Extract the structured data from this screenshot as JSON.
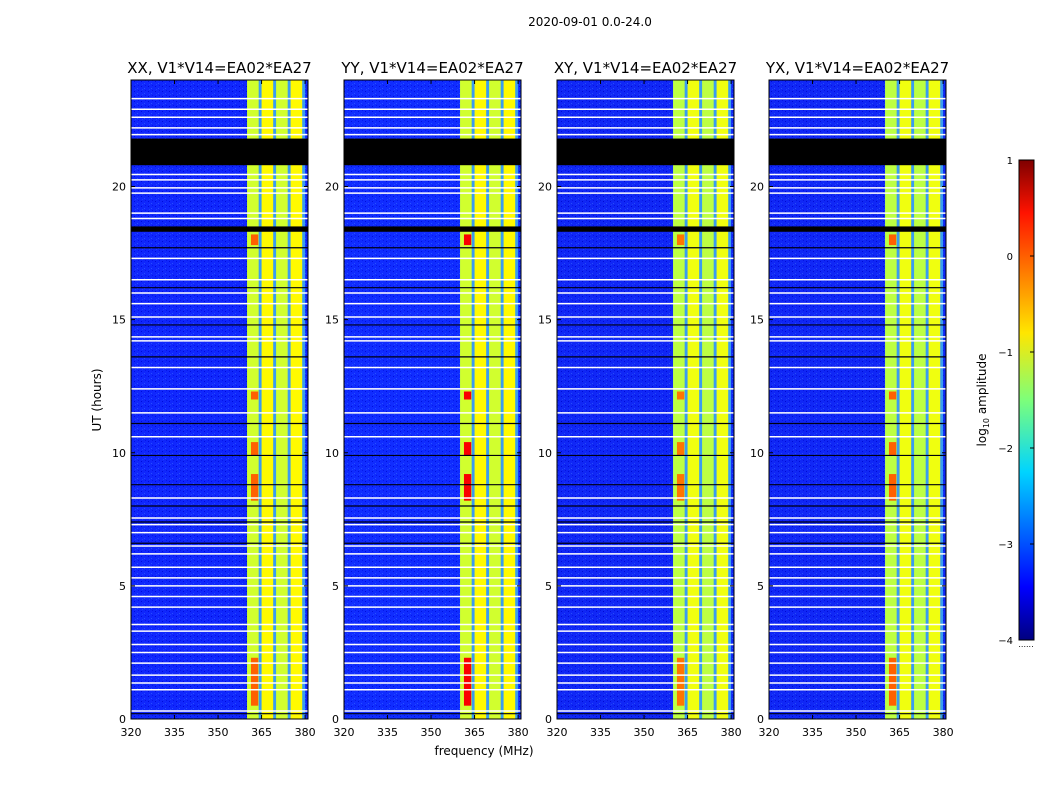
{
  "suptitle": "2020-09-01 0.0-24.0",
  "chart_data": {
    "type": "heatmap",
    "xlabel": "frequency (MHz)",
    "ylabel": "UT (hours)",
    "xlim": [
      320,
      381
    ],
    "ylim": [
      0,
      24
    ],
    "x_ticks": [
      320,
      335,
      350,
      365,
      380
    ],
    "y_ticks": [
      0,
      5,
      10,
      15,
      20
    ],
    "colorbar": {
      "label": "log10 amplitude",
      "label_main": "log",
      "label_sub": "10",
      "label_rest": " amplitude",
      "range": [
        -4,
        1
      ],
      "ticks": [
        1,
        0,
        -1,
        -2,
        -3,
        -4
      ],
      "tick_labels": [
        "1",
        "0",
        "−1",
        "−2",
        "−3",
        "−4"
      ],
      "colormap": "jet",
      "extra_label": "......"
    },
    "rfi_band_MHz": [
      360,
      380
    ],
    "rfi_columns_MHz": [
      [
        360,
        364
      ],
      [
        365,
        369
      ],
      [
        370,
        374
      ],
      [
        375,
        379
      ]
    ],
    "flagged_gaps_UT_hours": [
      [
        20.8,
        21.8
      ],
      [
        18.3,
        18.5
      ]
    ],
    "panels": [
      {
        "title": "XX, V1*V14=EA02*EA27",
        "background_log_amp": -3.4,
        "rfi_log_amp": -1.0,
        "hot_log_amp": -0.1
      },
      {
        "title": "YY, V1*V14=EA02*EA27",
        "background_log_amp": -3.3,
        "rfi_log_amp": -1.0,
        "hot_log_amp": 0.4
      },
      {
        "title": "XY, V1*V14=EA02*EA27",
        "background_log_amp": -3.5,
        "rfi_log_amp": -1.1,
        "hot_log_amp": -0.2
      },
      {
        "title": "YX, V1*V14=EA02*EA27",
        "background_log_amp": -3.5,
        "rfi_log_amp": -1.1,
        "hot_log_amp": -0.1
      }
    ]
  }
}
